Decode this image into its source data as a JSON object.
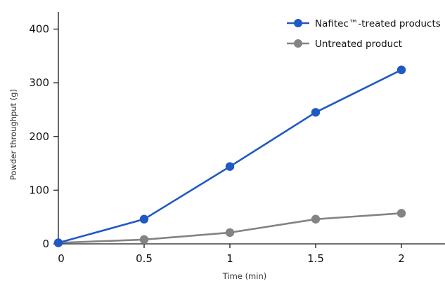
{
  "chart_data": {
    "type": "line",
    "xlabel": "Time (min)",
    "ylabel": "Powder throughput (g)",
    "x": [
      0,
      0.5,
      1,
      1.5,
      2
    ],
    "x_tick_labels": [
      "0",
      "0.5",
      "1",
      "1.5",
      "2"
    ],
    "xlim": [
      0,
      2.2
    ],
    "y_ticks": [
      0,
      100,
      200,
      300,
      400
    ],
    "y_tick_labels": [
      "0",
      "100",
      "200",
      "300",
      "400"
    ],
    "ylim": [
      0,
      430
    ],
    "grid": false,
    "legend_position": "top-right",
    "series": [
      {
        "name": "Nafitec™-treated products",
        "color": "#2059c4",
        "values": [
          2,
          46,
          144,
          245,
          324
        ]
      },
      {
        "name": "Untreated product",
        "color": "#838383",
        "values": [
          2,
          8,
          21,
          46,
          57
        ]
      }
    ]
  }
}
